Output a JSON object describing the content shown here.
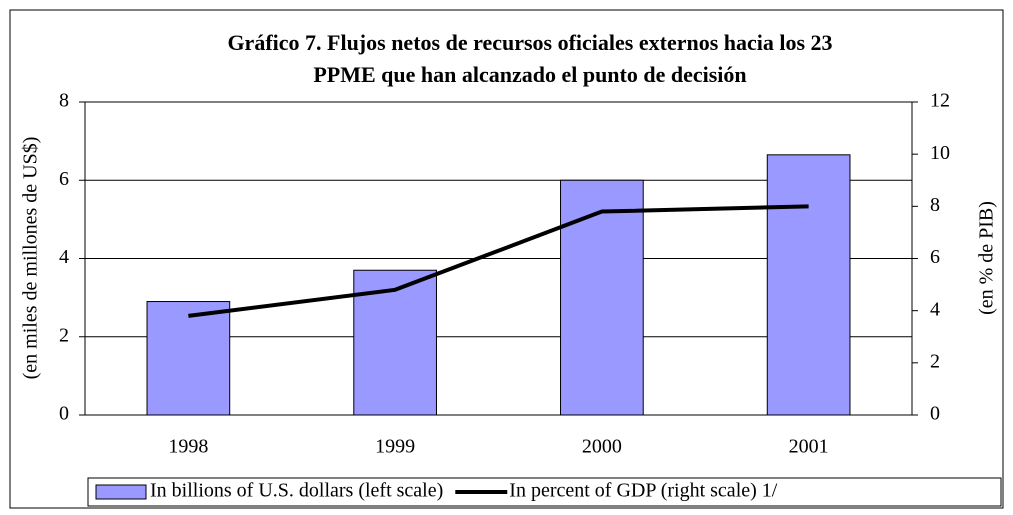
{
  "chart_data": {
    "type": "bar_line",
    "title": [
      "Gráfico 7.  Flujos netos de recursos oficiales externos hacia los 23",
      "PPME que han alcanzado el punto de decisión"
    ],
    "y_label": "(en miles de millones de US$)",
    "y2_label": "(en % de PIB)",
    "categories": [
      "1998",
      "1999",
      "2000",
      "2001"
    ],
    "series": [
      {
        "name": "In billions of U.S. dollars (left scale)",
        "type": "bar",
        "color": "#9999ff",
        "values": [
          2.9,
          3.7,
          6.0,
          6.65
        ]
      },
      {
        "name": "In percent of GDP (right scale) 1/",
        "type": "line",
        "color": "#000000",
        "axis": "y2",
        "values": [
          3.8,
          4.8,
          7.8,
          8.0
        ]
      }
    ],
    "ylim": [
      0,
      8
    ],
    "yticks": [
      0,
      2,
      4,
      6,
      8
    ],
    "y2lim": [
      0,
      12
    ],
    "y2ticks": [
      0,
      2,
      4,
      6,
      8,
      10,
      12
    ],
    "grid": true,
    "legend": "bottom"
  }
}
